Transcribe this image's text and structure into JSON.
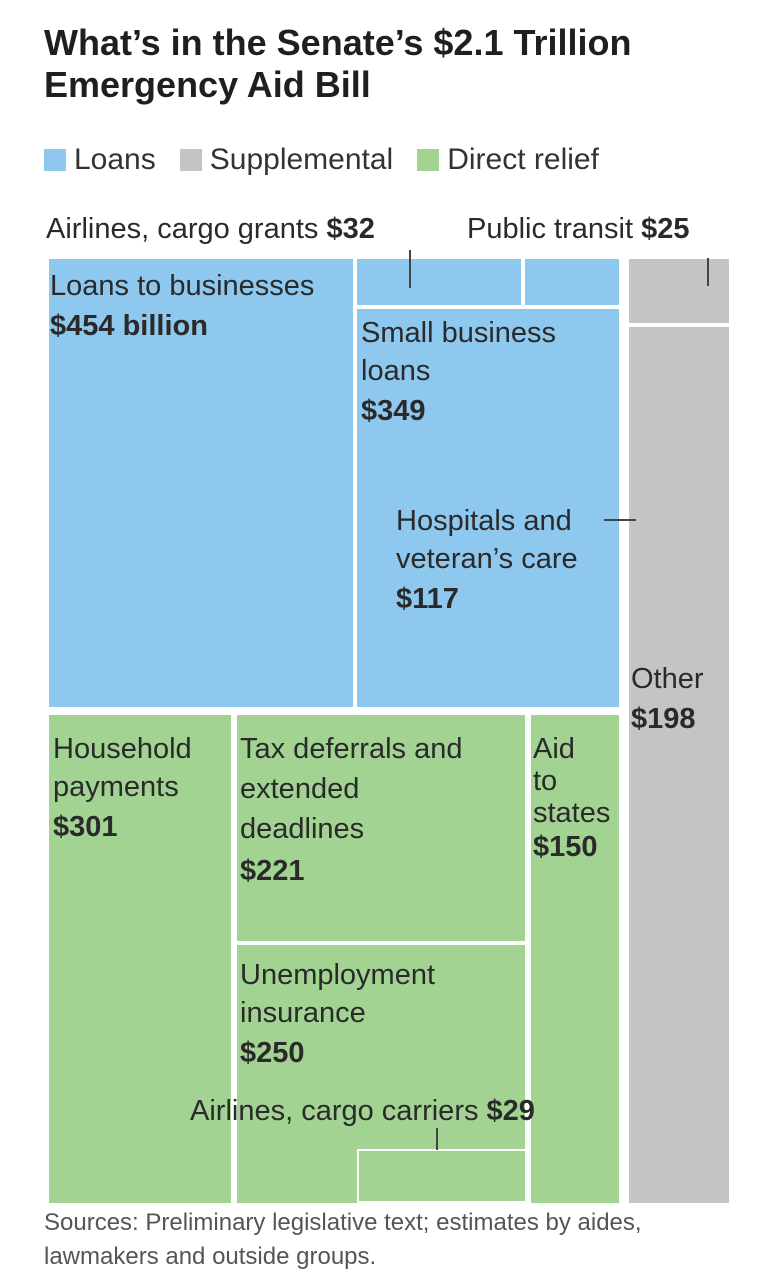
{
  "title": "What’s in the Senate’s $2.1 Trillion Emergency Aid Bill",
  "sources": "Sources: Preliminary legislative text; estimates by aides, lawmakers and outside groups.",
  "colors": {
    "loans": "#8ec8ee",
    "supplemental": "#c4c4c4",
    "direct_relief": "#a3d392"
  },
  "chart_data": {
    "type": "treemap",
    "title": "What’s in the Senate’s $2.1 Trillion Emergency Aid Bill",
    "unit": "billion dollars",
    "legend": [
      "Loans",
      "Supplemental",
      "Direct relief"
    ],
    "items": [
      {
        "name": "Loans to businesses",
        "value": 454,
        "label": "$454 billion",
        "category": "Loans"
      },
      {
        "name": "Small business loans",
        "value": 349,
        "label": "$349",
        "category": "Loans"
      },
      {
        "name": "Airlines, cargo grants",
        "value": 32,
        "label": "$32",
        "category": "Loans"
      },
      {
        "name": "Hospitals and veteran’s care",
        "value": 117,
        "label": "$117",
        "category": "Supplemental"
      },
      {
        "name": "Public transit",
        "value": 25,
        "label": "$25",
        "category": "Supplemental"
      },
      {
        "name": "Other",
        "value": 198,
        "label": "$198",
        "category": "Supplemental"
      },
      {
        "name": "Household payments",
        "value": 301,
        "label": "$301",
        "category": "Direct relief"
      },
      {
        "name": "Tax deferrals and extended deadlines",
        "value": 221,
        "label": "$221",
        "category": "Direct relief"
      },
      {
        "name": "Unemployment insurance",
        "value": 250,
        "label": "$250",
        "category": "Direct relief"
      },
      {
        "name": "Aid to states",
        "value": 150,
        "label": "$150",
        "category": "Direct relief"
      },
      {
        "name": "Airlines, cargo carriers",
        "value": 29,
        "label": "$29",
        "category": "Direct relief"
      }
    ]
  }
}
